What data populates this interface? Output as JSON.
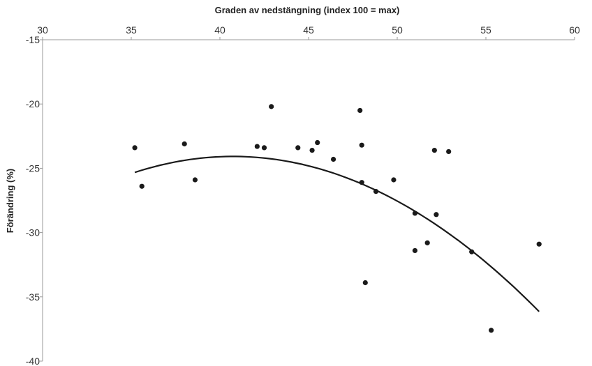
{
  "chart_data": {
    "type": "scatter",
    "title": "",
    "xlabel": "Graden av nedstängning (index 100 = max)",
    "ylabel": "Förändring (%)",
    "x_axis_position": "top",
    "xlim": [
      30,
      60
    ],
    "ylim": [
      -40,
      -15
    ],
    "xticks": [
      30,
      35,
      40,
      45,
      50,
      55,
      60
    ],
    "yticks": [
      -15,
      -20,
      -25,
      -30,
      -35,
      -40
    ],
    "grid": false,
    "legend": "none",
    "series": [
      {
        "points": [
          [
            35.2,
            -23.4
          ],
          [
            35.6,
            -26.4
          ],
          [
            38.0,
            -23.1
          ],
          [
            38.6,
            -25.9
          ],
          [
            42.1,
            -23.3
          ],
          [
            42.5,
            -23.4
          ],
          [
            42.9,
            -20.2
          ],
          [
            44.4,
            -23.4
          ],
          [
            45.2,
            -23.6
          ],
          [
            45.5,
            -23.0
          ],
          [
            46.4,
            -24.3
          ],
          [
            47.9,
            -20.5
          ],
          [
            48.0,
            -23.2
          ],
          [
            48.0,
            -26.1
          ],
          [
            48.2,
            -33.9
          ],
          [
            48.8,
            -26.8
          ],
          [
            49.8,
            -25.9
          ],
          [
            51.0,
            -28.5
          ],
          [
            51.0,
            -31.4
          ],
          [
            51.7,
            -30.8
          ],
          [
            52.1,
            -23.6
          ],
          [
            52.2,
            -28.6
          ],
          [
            52.9,
            -23.7
          ],
          [
            54.2,
            -31.5
          ],
          [
            55.3,
            -37.6
          ],
          [
            58.0,
            -30.9
          ]
        ],
        "color": "#1a1a1a"
      }
    ],
    "trendline": {
      "type": "polynomial",
      "order": 2,
      "x_range": [
        35.2,
        58.0
      ],
      "coefficients": [
        -91.3,
        3.3,
        -0.0405
      ],
      "color": "#1a1a1a"
    }
  }
}
